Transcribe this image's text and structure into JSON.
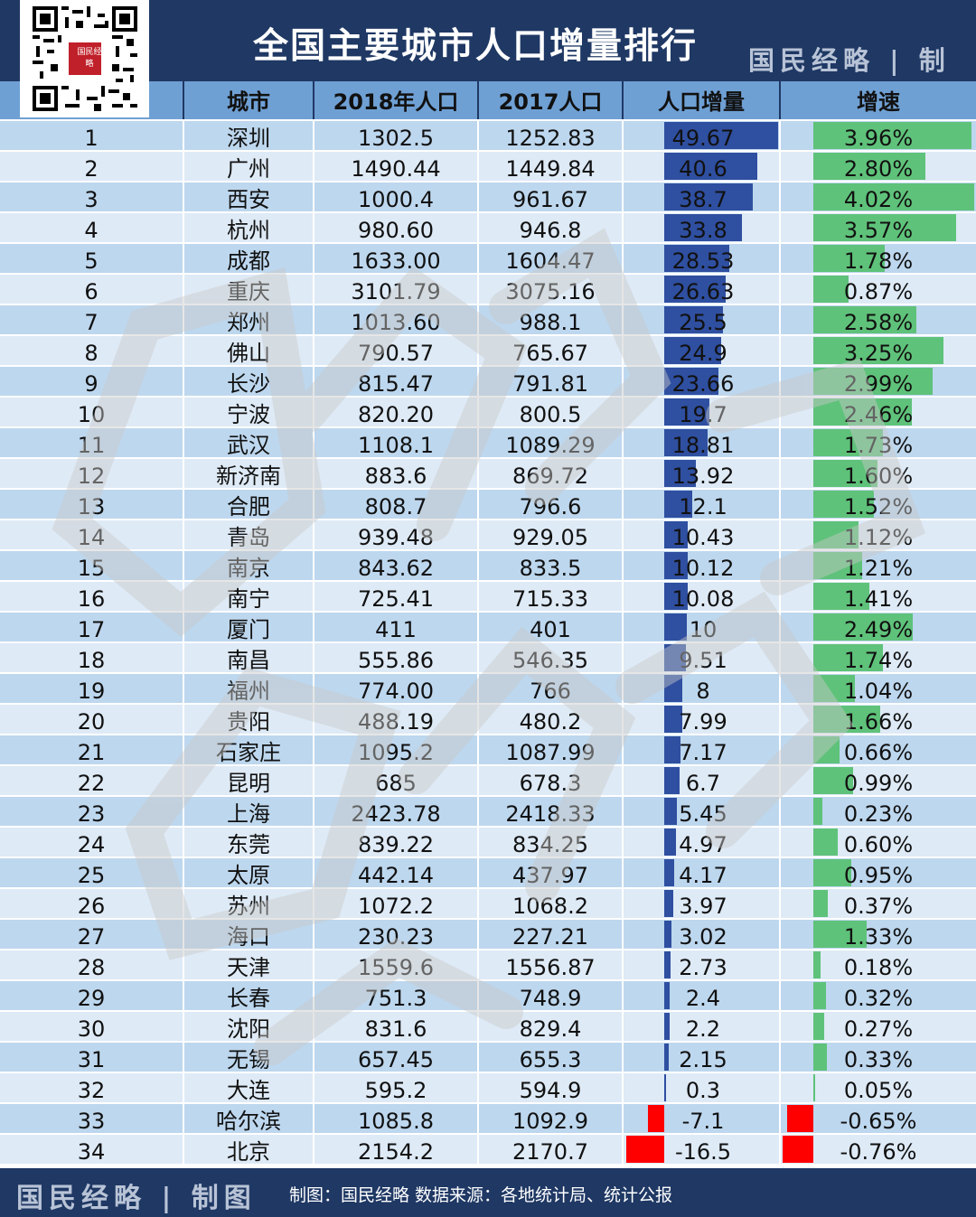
{
  "title": "全国主要城市人口增量排行",
  "brand": "国民经略 | 制图",
  "qr_badge": "国民经略",
  "columns": [
    "",
    "城市",
    "2018年人口",
    "2017人口",
    "人口增量",
    "增速"
  ],
  "footer": {
    "brand": "国民经略 | 制图",
    "source": "制图：国民经略 数据来源：各地统计局、统计公报"
  },
  "colors": {
    "navy": "#1f3864",
    "header_blue": "#6fa0d4",
    "row_light": "#deeaf6",
    "row_dark": "#bdd7ee",
    "increase_bar": "#2f4fa0",
    "growth_bar": "#5fc27a",
    "negative_bar": "#ff0000"
  },
  "rows": [
    {
      "rank": "1",
      "city": "深圳",
      "pop2018": "1302.5",
      "pop2017": "1252.83",
      "increase": "49.67",
      "growth": "3.96%"
    },
    {
      "rank": "2",
      "city": "广州",
      "pop2018": "1490.44",
      "pop2017": "1449.84",
      "increase": "40.6",
      "growth": "2.80%"
    },
    {
      "rank": "3",
      "city": "西安",
      "pop2018": "1000.4",
      "pop2017": "961.67",
      "increase": "38.7",
      "growth": "4.02%"
    },
    {
      "rank": "4",
      "city": "杭州",
      "pop2018": "980.60",
      "pop2017": "946.8",
      "increase": "33.8",
      "growth": "3.57%"
    },
    {
      "rank": "5",
      "city": "成都",
      "pop2018": "1633.00",
      "pop2017": "1604.47",
      "increase": "28.53",
      "growth": "1.78%"
    },
    {
      "rank": "6",
      "city": "重庆",
      "pop2018": "3101.79",
      "pop2017": "3075.16",
      "increase": "26.63",
      "growth": "0.87%"
    },
    {
      "rank": "7",
      "city": "郑州",
      "pop2018": "1013.60",
      "pop2017": "988.1",
      "increase": "25.5",
      "growth": "2.58%"
    },
    {
      "rank": "8",
      "city": "佛山",
      "pop2018": "790.57",
      "pop2017": "765.67",
      "increase": "24.9",
      "growth": "3.25%"
    },
    {
      "rank": "9",
      "city": "长沙",
      "pop2018": "815.47",
      "pop2017": "791.81",
      "increase": "23.66",
      "growth": "2.99%"
    },
    {
      "rank": "10",
      "city": "宁波",
      "pop2018": "820.20",
      "pop2017": "800.5",
      "increase": "19.7",
      "growth": "2.46%"
    },
    {
      "rank": "11",
      "city": "武汉",
      "pop2018": "1108.1",
      "pop2017": "1089.29",
      "increase": "18.81",
      "growth": "1.73%"
    },
    {
      "rank": "12",
      "city": "新济南",
      "pop2018": "883.6",
      "pop2017": "869.72",
      "increase": "13.92",
      "growth": "1.60%"
    },
    {
      "rank": "13",
      "city": "合肥",
      "pop2018": "808.7",
      "pop2017": "796.6",
      "increase": "12.1",
      "growth": "1.52%"
    },
    {
      "rank": "14",
      "city": "青岛",
      "pop2018": "939.48",
      "pop2017": "929.05",
      "increase": "10.43",
      "growth": "1.12%"
    },
    {
      "rank": "15",
      "city": "南京",
      "pop2018": "843.62",
      "pop2017": "833.5",
      "increase": "10.12",
      "growth": "1.21%"
    },
    {
      "rank": "16",
      "city": "南宁",
      "pop2018": "725.41",
      "pop2017": "715.33",
      "increase": "10.08",
      "growth": "1.41%"
    },
    {
      "rank": "17",
      "city": "厦门",
      "pop2018": "411",
      "pop2017": "401",
      "increase": "10",
      "growth": "2.49%"
    },
    {
      "rank": "18",
      "city": "南昌",
      "pop2018": "555.86",
      "pop2017": "546.35",
      "increase": "9.51",
      "growth": "1.74%"
    },
    {
      "rank": "19",
      "city": "福州",
      "pop2018": "774.00",
      "pop2017": "766",
      "increase": "8",
      "growth": "1.04%"
    },
    {
      "rank": "20",
      "city": "贵阳",
      "pop2018": "488.19",
      "pop2017": "480.2",
      "increase": "7.99",
      "growth": "1.66%"
    },
    {
      "rank": "21",
      "city": "石家庄",
      "pop2018": "1095.2",
      "pop2017": "1087.99",
      "increase": "7.17",
      "growth": "0.66%"
    },
    {
      "rank": "22",
      "city": "昆明",
      "pop2018": "685",
      "pop2017": "678.3",
      "increase": "6.7",
      "growth": "0.99%"
    },
    {
      "rank": "23",
      "city": "上海",
      "pop2018": "2423.78",
      "pop2017": "2418.33",
      "increase": "5.45",
      "growth": "0.23%"
    },
    {
      "rank": "24",
      "city": "东莞",
      "pop2018": "839.22",
      "pop2017": "834.25",
      "increase": "4.97",
      "growth": "0.60%"
    },
    {
      "rank": "25",
      "city": "太原",
      "pop2018": "442.14",
      "pop2017": "437.97",
      "increase": "4.17",
      "growth": "0.95%"
    },
    {
      "rank": "26",
      "city": "苏州",
      "pop2018": "1072.2",
      "pop2017": "1068.2",
      "increase": "3.97",
      "growth": "0.37%"
    },
    {
      "rank": "27",
      "city": "海口",
      "pop2018": "230.23",
      "pop2017": "227.21",
      "increase": "3.02",
      "growth": "1.33%"
    },
    {
      "rank": "28",
      "city": "天津",
      "pop2018": "1559.6",
      "pop2017": "1556.87",
      "increase": "2.73",
      "growth": "0.18%"
    },
    {
      "rank": "29",
      "city": "长春",
      "pop2018": "751.3",
      "pop2017": "748.9",
      "increase": "2.4",
      "growth": "0.32%"
    },
    {
      "rank": "30",
      "city": "沈阳",
      "pop2018": "831.6",
      "pop2017": "829.4",
      "increase": "2.2",
      "growth": "0.27%"
    },
    {
      "rank": "31",
      "city": "无锡",
      "pop2018": "657.45",
      "pop2017": "655.3",
      "increase": "2.15",
      "growth": "0.33%"
    },
    {
      "rank": "32",
      "city": "大连",
      "pop2018": "595.2",
      "pop2017": "594.9",
      "increase": "0.3",
      "growth": "0.05%"
    },
    {
      "rank": "33",
      "city": "哈尔滨",
      "pop2018": "1085.8",
      "pop2017": "1092.9",
      "increase": "-7.1",
      "growth": "-0.65%"
    },
    {
      "rank": "34",
      "city": "北京",
      "pop2018": "2154.2",
      "pop2017": "2170.7",
      "increase": "-16.5",
      "growth": "-0.76%"
    }
  ]
}
